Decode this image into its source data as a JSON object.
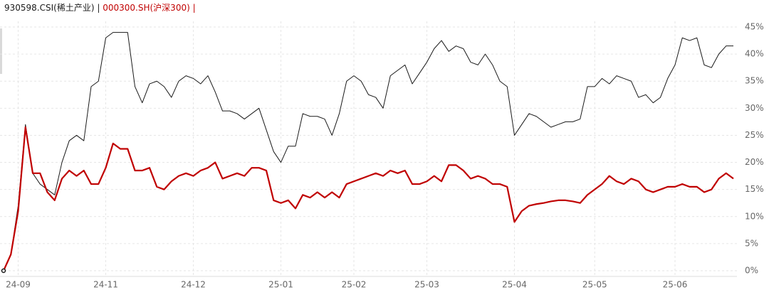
{
  "chart_data": {
    "type": "line",
    "separator": "|",
    "categories": [
      null,
      null,
      "24-09",
      null,
      null,
      null,
      null,
      null,
      null,
      null,
      null,
      null,
      null,
      null,
      "24-11",
      null,
      null,
      null,
      null,
      null,
      null,
      null,
      null,
      null,
      null,
      null,
      "24-12",
      null,
      null,
      null,
      null,
      null,
      null,
      null,
      null,
      null,
      null,
      null,
      "25-01",
      null,
      null,
      null,
      null,
      null,
      null,
      null,
      null,
      null,
      "25-02",
      null,
      null,
      null,
      null,
      null,
      null,
      null,
      null,
      null,
      "25-03",
      null,
      null,
      null,
      null,
      null,
      null,
      null,
      null,
      null,
      null,
      null,
      "25-04",
      null,
      null,
      null,
      null,
      null,
      null,
      null,
      null,
      null,
      null,
      "25-05",
      null,
      null,
      null,
      null,
      null,
      null,
      null,
      null,
      null,
      null,
      "25-06",
      null,
      null,
      null,
      null,
      null,
      null,
      null,
      null
    ],
    "series": [
      {
        "name": "930598.CSI(稀土产业)",
        "color": "#1a1a1a",
        "values": [
          0,
          3,
          12,
          27,
          18,
          16,
          15,
          14,
          20,
          24,
          25,
          24,
          34,
          35,
          43,
          44,
          44,
          44,
          34,
          31,
          34.5,
          35,
          34,
          32,
          35,
          36,
          35.5,
          34.5,
          36,
          33,
          29.5,
          29.5,
          29,
          28,
          29,
          30,
          26,
          22,
          20,
          23,
          23,
          29,
          28.5,
          28.5,
          28,
          25,
          29,
          35,
          36,
          35,
          32.5,
          32,
          30,
          36,
          37,
          38,
          34.5,
          36.5,
          38.5,
          41,
          42.5,
          40.5,
          41.5,
          41,
          38.5,
          38,
          40,
          38,
          35,
          34,
          25,
          27,
          29,
          28.5,
          27.5,
          26.5,
          27,
          27.5,
          27.5,
          28,
          34,
          34,
          35.5,
          34.5,
          36,
          35.5,
          35,
          32,
          32.5,
          31,
          32,
          35.5,
          38,
          43,
          42.5,
          43,
          38,
          37.5,
          40,
          41.5,
          41.5
        ]
      },
      {
        "name": "000300.SH(沪深300)",
        "color": "#c00000",
        "values": [
          0,
          3,
          11,
          26.5,
          18,
          18,
          14.5,
          13,
          17,
          18.5,
          17.5,
          18.5,
          16,
          16,
          19,
          23.5,
          22.5,
          22.5,
          18.5,
          18.5,
          19,
          15.5,
          15,
          16.5,
          17.5,
          18,
          17.5,
          18.5,
          19,
          20,
          17,
          17.5,
          18,
          17.5,
          19,
          19,
          18.5,
          13,
          12.5,
          13,
          11.5,
          14,
          13.5,
          14.5,
          13.5,
          14.5,
          13.5,
          16,
          16.5,
          17,
          17.5,
          18,
          17.5,
          18.5,
          18,
          18.5,
          16,
          16,
          16.5,
          17.5,
          16.5,
          19.5,
          19.5,
          18.5,
          17,
          17.5,
          17,
          16,
          16,
          15.5,
          9,
          11,
          12,
          12.3,
          12.5,
          12.8,
          13,
          13,
          12.8,
          12.5,
          14,
          15,
          16,
          17.5,
          16.5,
          16,
          17,
          16.5,
          15,
          14.5,
          15,
          15.5,
          15.5,
          16,
          15.5,
          15.5,
          14.5,
          15,
          17,
          18,
          17
        ]
      }
    ],
    "ylim": [
      0,
      45
    ],
    "yticks": [
      {
        "value": 0,
        "label": "0%"
      },
      {
        "value": 5,
        "label": "5%"
      },
      {
        "value": 10,
        "label": "10%"
      },
      {
        "value": 15,
        "label": "15%"
      },
      {
        "value": 20,
        "label": "20%"
      },
      {
        "value": 25,
        "label": "25%"
      },
      {
        "value": 30,
        "label": "30%"
      },
      {
        "value": 35,
        "label": "35%"
      },
      {
        "value": 40,
        "label": "40%"
      },
      {
        "value": 45,
        "label": "45%"
      }
    ],
    "grid": true
  }
}
